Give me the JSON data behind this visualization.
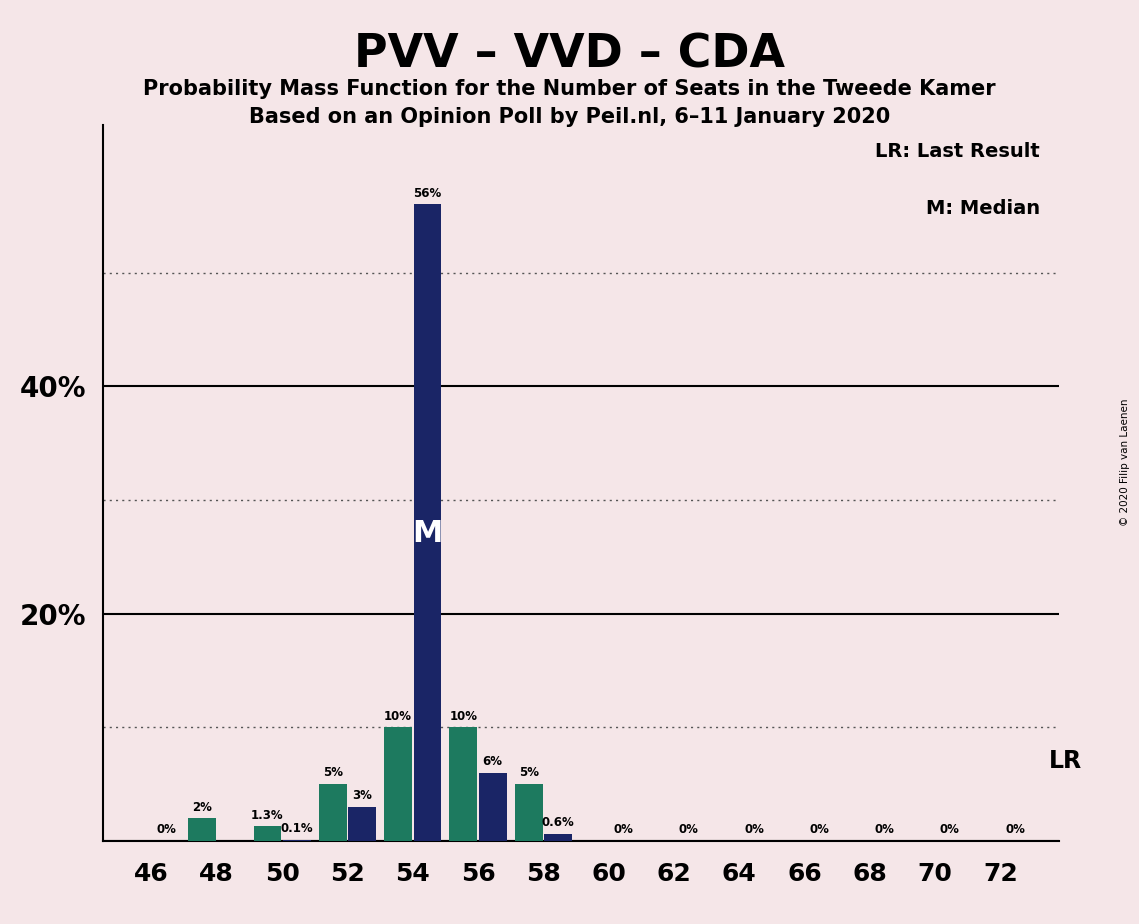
{
  "title": "PVV – VVD – CDA",
  "subtitle1": "Probability Mass Function for the Number of Seats in the Tweede Kamer",
  "subtitle2": "Based on an Opinion Poll by Peil.nl, 6–11 January 2020",
  "copyright": "© 2020 Filip van Laenen",
  "background_color": "#f5e6e8",
  "bar_color_navy": "#1a2566",
  "bar_color_green": "#1d7a5f",
  "seats_even": [
    46,
    48,
    50,
    52,
    54,
    56,
    58,
    60,
    62,
    64,
    66,
    68,
    70,
    72
  ],
  "navy_probs": [
    0.0,
    0.0,
    0.1,
    3.0,
    56.0,
    6.0,
    0.6,
    0.0,
    0.0,
    0.0,
    0.0,
    0.0,
    0.0,
    0.0
  ],
  "green_probs": [
    0.0,
    2.0,
    1.3,
    5.0,
    10.0,
    10.0,
    5.0,
    0.0,
    0.0,
    0.0,
    0.0,
    0.0,
    0.0,
    0.0
  ],
  "navy_labels": [
    "0%",
    "",
    "0.1%",
    "3%",
    "56%",
    "6%",
    "0.6%",
    "0%",
    "0%",
    "0%",
    "0%",
    "0%",
    "0%",
    "0%"
  ],
  "green_labels": [
    "",
    "2%",
    "1.3%",
    "5%",
    "10%",
    "10%",
    "5%",
    "",
    "",
    "",
    "",
    "",
    "",
    ""
  ],
  "median_seat": 54,
  "median_label": "M",
  "lr_legend": "LR: Last Result",
  "m_legend": "M: Median",
  "lr_axis_label": "LR",
  "xtick_positions": [
    46,
    48,
    50,
    52,
    54,
    56,
    58,
    60,
    62,
    64,
    66,
    68,
    70,
    72
  ],
  "ytick_solid": [
    0,
    20,
    40
  ],
  "ytick_dotted": [
    10,
    30,
    50
  ],
  "ymax": 63
}
